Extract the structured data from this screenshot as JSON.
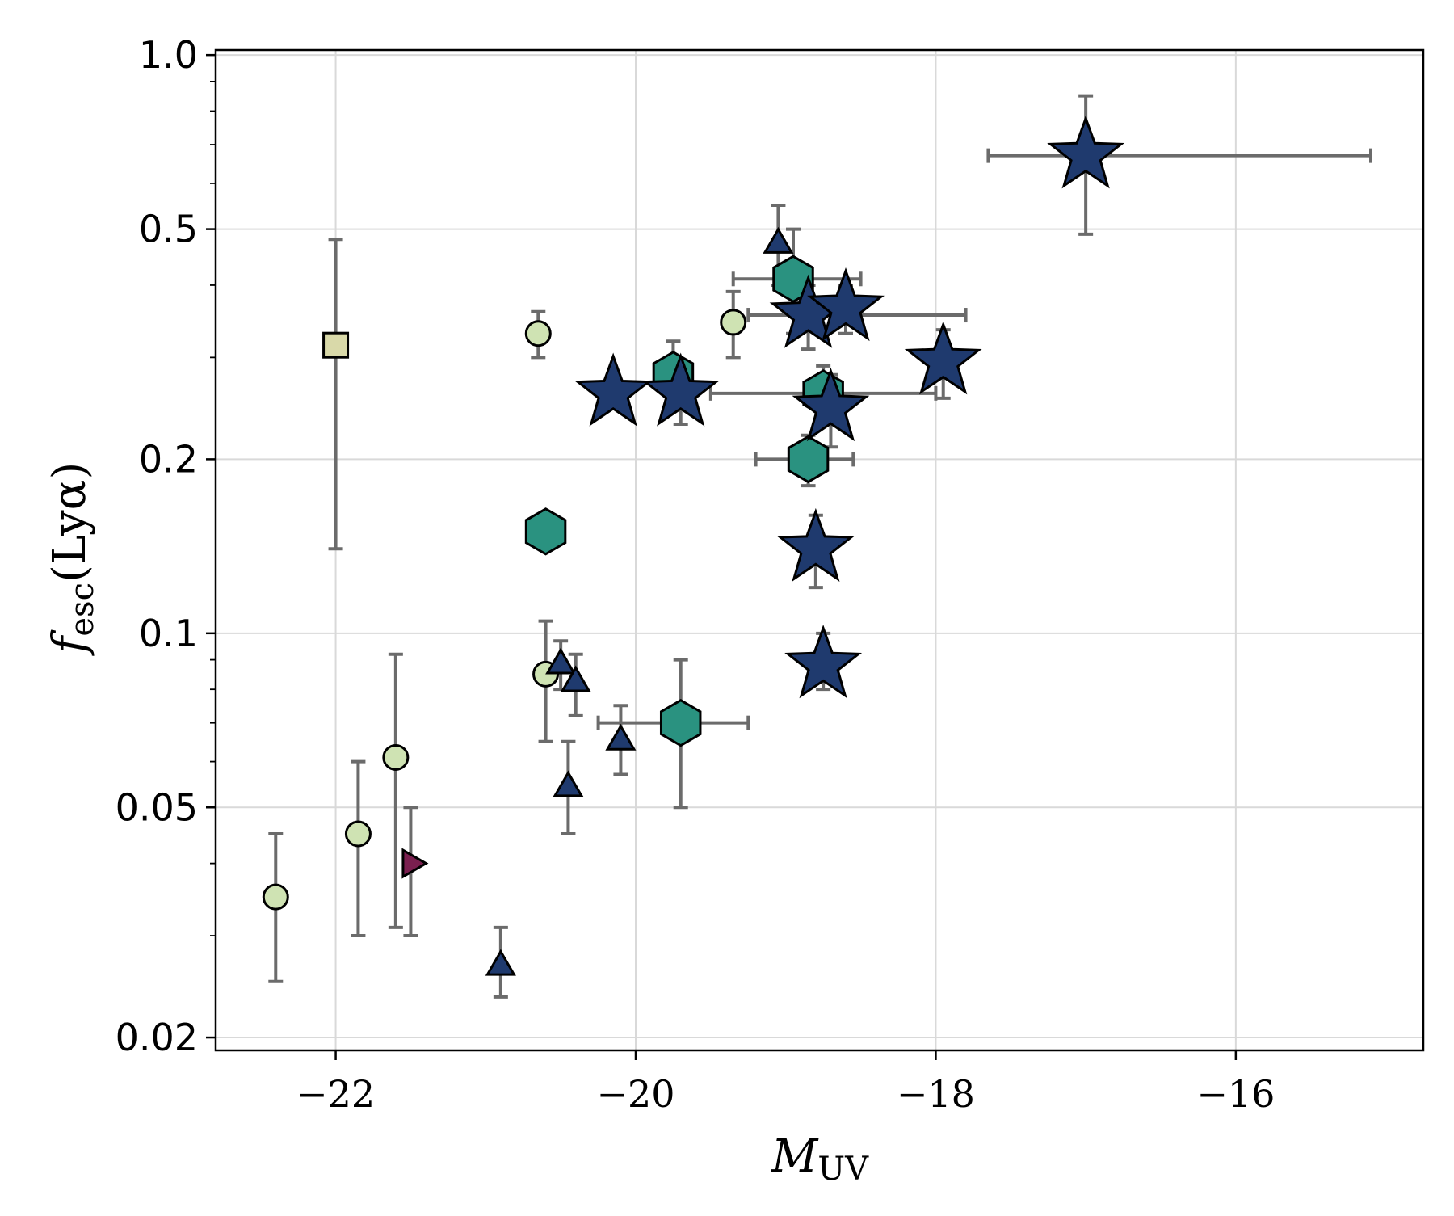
{
  "chart_data": {
    "type": "scatter",
    "title": "",
    "xlabel": "M",
    "xlabel_sub": "UV",
    "ylabel": "f",
    "ylabel_sub": "esc",
    "ylabel_tail": "(Lyα)",
    "xlim": [
      -22.8,
      -14.75
    ],
    "ylim": [
      0.019,
      1.02
    ],
    "yscale": "log",
    "grid": true,
    "x_ticks": [
      -22,
      -20,
      -18,
      -16
    ],
    "x_tick_labels": [
      "−22",
      "−20",
      "−18",
      "−16"
    ],
    "y_ticks": [
      0.02,
      0.05,
      0.1,
      0.2,
      0.5,
      1.0
    ],
    "y_tick_labels": [
      "0.02",
      "0.05",
      "0.1",
      "0.2",
      "0.5",
      "1.0"
    ],
    "series": [
      {
        "marker": "circle",
        "color": "#cfe3b3",
        "points": [
          {
            "x": -22.4,
            "y": 0.035,
            "ylo": 0.025,
            "yhi": 0.045
          },
          {
            "x": -21.85,
            "y": 0.045,
            "ylo": 0.03,
            "yhi": 0.06
          },
          {
            "x": -21.6,
            "y": 0.061,
            "ylo": 0.031,
            "yhi": 0.092
          },
          {
            "x": -20.65,
            "y": 0.33,
            "ylo": 0.3,
            "yhi": 0.36
          },
          {
            "x": -20.6,
            "y": 0.085,
            "ylo": 0.065,
            "yhi": 0.105
          },
          {
            "x": -19.35,
            "y": 0.345,
            "ylo": 0.3,
            "yhi": 0.39
          }
        ]
      },
      {
        "marker": "square",
        "color": "#d9d9a9",
        "points": [
          {
            "x": -22.0,
            "y": 0.315,
            "ylo": 0.14,
            "yhi": 0.48
          }
        ]
      },
      {
        "marker": "triangle-right",
        "color": "#7a1f4f",
        "points": [
          {
            "x": -21.5,
            "y": 0.04,
            "ylo": 0.03,
            "yhi": 0.05
          }
        ]
      },
      {
        "marker": "triangle-up",
        "color": "#1f3a6e",
        "points": [
          {
            "x": -20.9,
            "y": 0.0265,
            "ylo": 0.0235,
            "yhi": 0.031
          },
          {
            "x": -20.5,
            "y": 0.088,
            "ylo": 0.08,
            "yhi": 0.097
          },
          {
            "x": -20.4,
            "y": 0.082,
            "ylo": 0.072,
            "yhi": 0.092
          },
          {
            "x": -20.45,
            "y": 0.054,
            "ylo": 0.045,
            "yhi": 0.065
          },
          {
            "x": -20.1,
            "y": 0.065,
            "ylo": 0.057,
            "yhi": 0.075
          },
          {
            "x": -19.05,
            "y": 0.47,
            "ylo": 0.4,
            "yhi": 0.55
          }
        ]
      },
      {
        "marker": "hexagon",
        "color": "#2a9280",
        "points": [
          {
            "x": -20.6,
            "y": 0.15
          },
          {
            "x": -19.75,
            "y": 0.28,
            "ylo": 0.25,
            "yhi": 0.32
          },
          {
            "x": -19.7,
            "y": 0.07,
            "ylo": 0.05,
            "yhi": 0.09,
            "xlo": -20.25,
            "xhi": -19.25
          },
          {
            "x": -18.95,
            "y": 0.41,
            "ylo": 0.33,
            "yhi": 0.5,
            "xlo": -19.35,
            "xhi": -18.5
          },
          {
            "x": -18.75,
            "y": 0.26,
            "ylo": 0.23,
            "yhi": 0.29,
            "xlo": -19.5,
            "xhi": -18.0
          },
          {
            "x": -18.85,
            "y": 0.2,
            "ylo": 0.18,
            "yhi": 0.22,
            "xlo": -19.2,
            "xhi": -18.55
          }
        ]
      },
      {
        "marker": "star",
        "color": "#1f3a6e",
        "points": [
          {
            "x": -20.15,
            "y": 0.26
          },
          {
            "x": -19.7,
            "y": 0.26,
            "ylo": 0.23,
            "yhi": 0.29
          },
          {
            "x": -18.85,
            "y": 0.355,
            "ylo": 0.31,
            "yhi": 0.4,
            "xlo": -19.25,
            "xhi": -17.8
          },
          {
            "x": -18.6,
            "y": 0.365,
            "ylo": 0.33,
            "yhi": 0.4,
            "xlo": -18.95,
            "xhi": -18.5
          },
          {
            "x": -18.7,
            "y": 0.245,
            "ylo": 0.21,
            "yhi": 0.28
          },
          {
            "x": -17.95,
            "y": 0.295,
            "ylo": 0.255,
            "yhi": 0.335
          },
          {
            "x": -18.8,
            "y": 0.14,
            "ylo": 0.12,
            "yhi": 0.16
          },
          {
            "x": -18.75,
            "y": 0.088,
            "ylo": 0.08,
            "yhi": 0.1
          },
          {
            "x": -17.0,
            "y": 0.67,
            "ylo": 0.49,
            "yhi": 0.85,
            "xlo": -17.65,
            "xhi": -15.1
          }
        ]
      }
    ]
  }
}
